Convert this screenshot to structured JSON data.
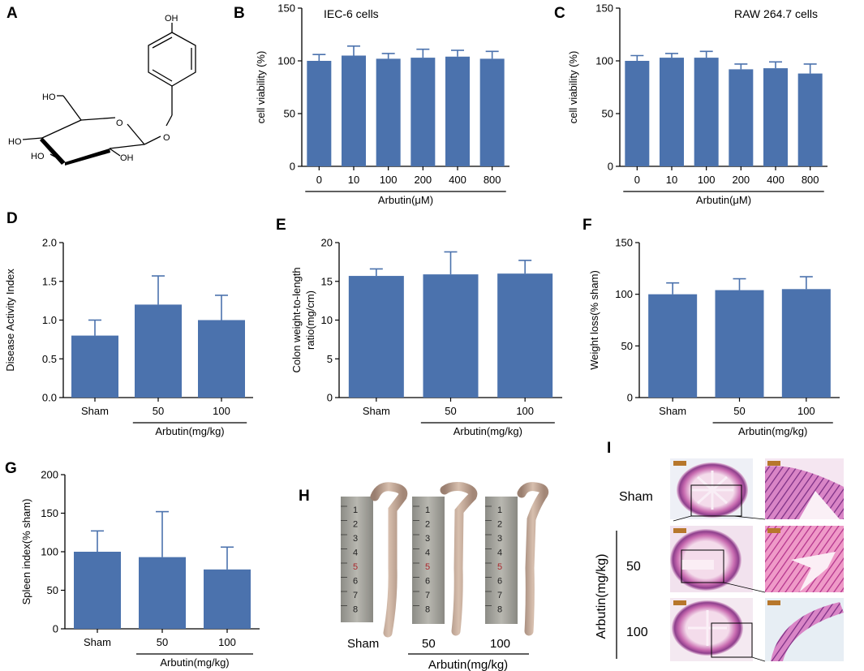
{
  "panels": {
    "A": "A",
    "B": "B",
    "C": "C",
    "D": "D",
    "E": "E",
    "F": "F",
    "G": "G",
    "H": "H",
    "I": "I"
  },
  "structure": {
    "oh_top": "OH",
    "ho1": "HO",
    "ho2": "HO",
    "ho3": "HO",
    "oh_bottom": "OH",
    "o_ring": "O",
    "o_link": "O"
  },
  "bar_color": "#4b72ad",
  "chart_data": [
    {
      "id": "B",
      "type": "bar",
      "title": "IEC-6 cells",
      "ylabel": "cell viability (%)",
      "xlabel": "Arbutin(μM)",
      "categories": [
        "0",
        "10",
        "100",
        "200",
        "400",
        "800"
      ],
      "values": [
        100,
        105,
        102,
        103,
        104,
        102
      ],
      "errors": [
        6,
        9,
        5,
        8,
        6,
        7
      ],
      "ylim": [
        0,
        150
      ],
      "yticks": [
        0,
        50,
        100,
        150
      ],
      "ytick_labels": [
        "0",
        "50",
        "100",
        "150"
      ],
      "bracket_from": 0
    },
    {
      "id": "C",
      "type": "bar",
      "title": "RAW 264.7 cells",
      "ylabel": "cell viability (%)",
      "xlabel": "Arbutin(μM)",
      "categories": [
        "0",
        "10",
        "100",
        "200",
        "400",
        "800"
      ],
      "values": [
        100,
        103,
        103,
        92,
        93,
        88
      ],
      "errors": [
        5,
        4,
        6,
        5,
        6,
        9
      ],
      "ylim": [
        0,
        150
      ],
      "yticks": [
        0,
        50,
        100,
        150
      ],
      "ytick_labels": [
        "0",
        "50",
        "100",
        "150"
      ],
      "bracket_from": 0
    },
    {
      "id": "D",
      "type": "bar",
      "title": "",
      "ylabel": "Disease Activity Index",
      "xlabel": "Arbutin(mg/kg)",
      "categories": [
        "Sham",
        "50",
        "100"
      ],
      "values": [
        0.8,
        1.2,
        1.0
      ],
      "errors": [
        0.2,
        0.37,
        0.32
      ],
      "ylim": [
        0,
        2.0
      ],
      "yticks": [
        0,
        0.5,
        1.0,
        1.5,
        2.0
      ],
      "ytick_labels": [
        "0.0",
        "0.5",
        "1.0",
        "1.5",
        "2.0"
      ],
      "bracket_from": 1
    },
    {
      "id": "E",
      "type": "bar",
      "title": "",
      "ylabel": "Colon weight-to-length ratio(mg/cm)",
      "xlabel": "Arbutin(mg/kg)",
      "categories": [
        "Sham",
        "50",
        "100"
      ],
      "values": [
        15.7,
        15.9,
        16.0
      ],
      "errors": [
        0.9,
        2.9,
        1.7
      ],
      "ylim": [
        0,
        20
      ],
      "yticks": [
        0,
        5,
        10,
        15,
        20
      ],
      "ytick_labels": [
        "0",
        "5",
        "10",
        "15",
        "20"
      ],
      "bracket_from": 1
    },
    {
      "id": "F",
      "type": "bar",
      "title": "",
      "ylabel": "Weight loss(% sham)",
      "xlabel": "Arbutin(mg/kg)",
      "categories": [
        "Sham",
        "50",
        "100"
      ],
      "values": [
        100,
        104,
        105
      ],
      "errors": [
        11,
        11,
        12
      ],
      "ylim": [
        0,
        150
      ],
      "yticks": [
        0,
        50,
        100,
        150
      ],
      "ytick_labels": [
        "0",
        "50",
        "100",
        "150"
      ],
      "bracket_from": 1
    },
    {
      "id": "G",
      "type": "bar",
      "title": "",
      "ylabel": "Spleen index(% sham)",
      "xlabel": "Arbutin(mg/kg)",
      "categories": [
        "Sham",
        "50",
        "100"
      ],
      "values": [
        100,
        93,
        77
      ],
      "errors": [
        27,
        59,
        29
      ],
      "ylim": [
        0,
        200
      ],
      "yticks": [
        0,
        50,
        100,
        150,
        200
      ],
      "ytick_labels": [
        "0",
        "50",
        "100",
        "150",
        "200"
      ],
      "bracket_from": 1
    }
  ],
  "panel_H": {
    "groups": [
      "Sham",
      "50",
      "100"
    ],
    "xlabel": "Arbutin(mg/kg)",
    "ruler_numbers": [
      "1",
      "2",
      "3",
      "4",
      "5",
      "6",
      "7",
      "8"
    ]
  },
  "panel_I": {
    "rows": [
      "Sham",
      "50",
      "100"
    ],
    "vertical_label": "Arbutin(mg/kg)"
  }
}
